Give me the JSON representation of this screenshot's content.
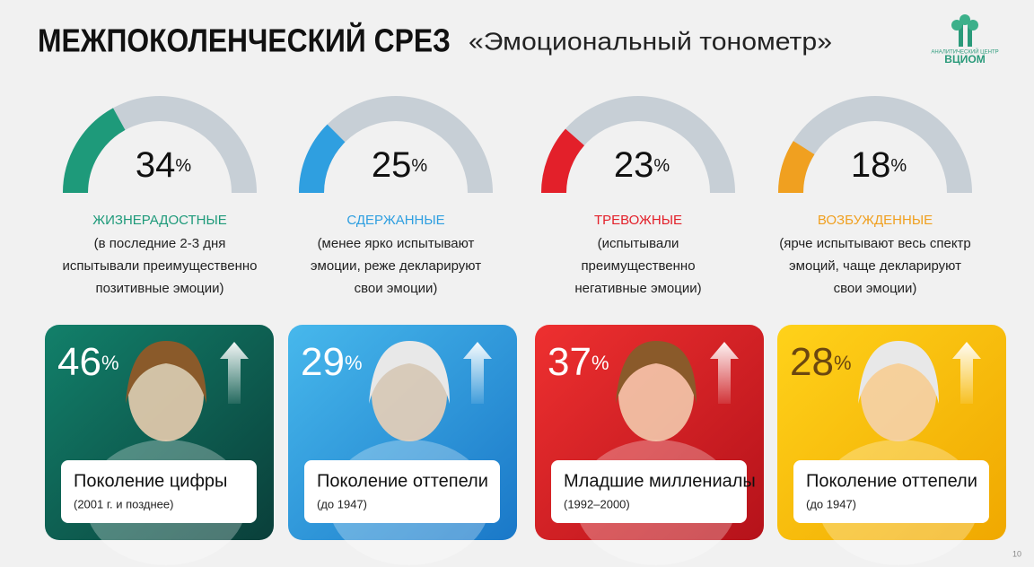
{
  "header": {
    "title": "МЕЖПОКОЛЕНЧЕСКИЙ СРЕЗ",
    "subtitle": "«Эмоциональный тонометр»"
  },
  "logo": {
    "caption": "АНАЛИТИЧЕСКИЙ ЦЕНТР",
    "name": "ВЦИОМ"
  },
  "gauge_range": [
    0,
    100
  ],
  "gauges": [
    {
      "value": 34,
      "unit": "%",
      "label": "ЖИЗНЕРАДОСТНЫЕ",
      "color": "#1e9a7a",
      "description": [
        "(в последние 2-3 дня",
        "испытывали преимущественно",
        "позитивные эмоции)"
      ]
    },
    {
      "value": 25,
      "unit": "%",
      "label": "СДЕРЖАННЫЕ",
      "color": "#2f9fe0",
      "description": [
        "(менее ярко испытывают",
        "эмоции, реже декларируют",
        "свои эмоции)"
      ]
    },
    {
      "value": 23,
      "unit": "%",
      "label": "ТРЕВОЖНЫЕ",
      "color": "#e3202a",
      "description": [
        "(испытывали",
        "преимущественно",
        "негативные эмоции)"
      ]
    },
    {
      "value": 18,
      "unit": "%",
      "label": "ВОЗБУЖДЕННЫЕ",
      "color": "#f0a020",
      "description": [
        "(ярче испытывают весь спектр",
        "эмоций, чаще декларируют",
        "свои эмоции)"
      ]
    }
  ],
  "cards": [
    {
      "value": 46,
      "unit": "%",
      "generation": "Поколение цифры",
      "years": "(2001 г. и позднее)",
      "color": "#12806a",
      "dark": "#0a3f3a",
      "text_color": "#ffffff"
    },
    {
      "value": 29,
      "unit": "%",
      "generation": "Поколение оттепели",
      "years": "(до 1947)",
      "color": "#47b8ec",
      "dark": "#1a78c8",
      "text_color": "#ffffff"
    },
    {
      "value": 37,
      "unit": "%",
      "generation": "Младшие миллениалы",
      "years": "(1992–2000)",
      "color": "#ee3030",
      "dark": "#b5121a",
      "text_color": "#ffffff"
    },
    {
      "value": 28,
      "unit": "%",
      "generation": "Поколение оттепели",
      "years": "(до 1947)",
      "color": "#ffd21a",
      "dark": "#f0a800",
      "text_color": "#6b4710"
    }
  ],
  "page_number": "10"
}
